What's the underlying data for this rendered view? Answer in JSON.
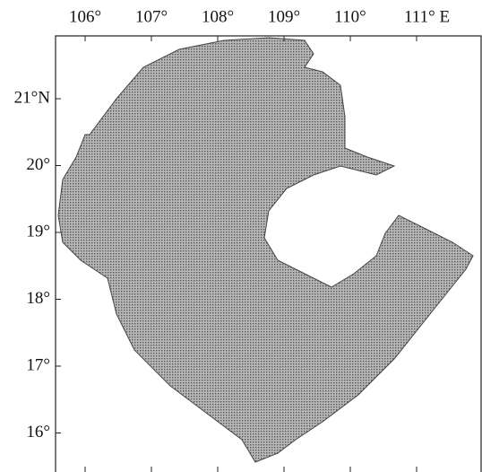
{
  "map": {
    "longitude_labels": [
      "106°",
      "107°",
      "108°",
      "109°",
      "110°",
      "111° E"
    ],
    "latitude_labels": [
      "21°N",
      "20°",
      "19°",
      "18°",
      "17°",
      "16°"
    ]
  }
}
